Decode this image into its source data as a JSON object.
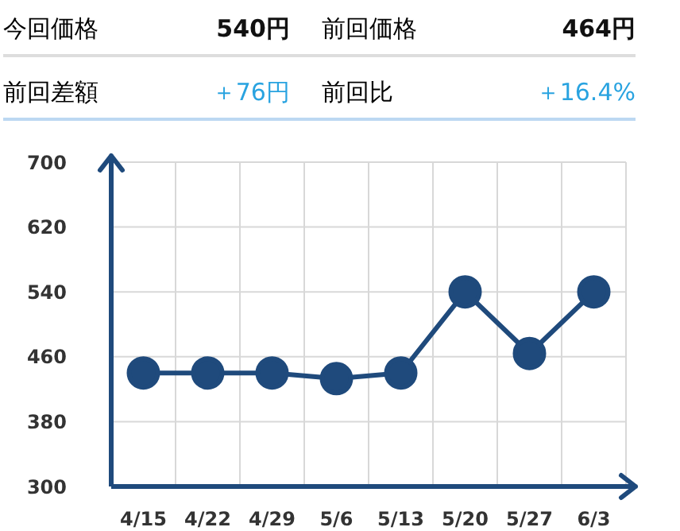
{
  "chart_data": {
    "type": "line",
    "annotations": [
      "今回価格",
      "540円",
      "前回価格",
      "464円",
      "前回差額",
      "＋76円",
      "前回比",
      "＋16.4%"
    ],
    "categories": [
      "4/15",
      "4/22",
      "4/29",
      "5/6",
      "5/13",
      "5/20",
      "5/27",
      "6/3"
    ],
    "series": [
      {
        "color": "#1f4a7c",
        "values": [
          440,
          440,
          440,
          433,
          440,
          540,
          464,
          540
        ]
      }
    ],
    "ylim": [
      300,
      700
    ],
    "yticks": [
      300,
      380,
      460,
      540,
      620,
      700
    ],
    "grid": true,
    "marker": "circle",
    "line_style": "solid"
  }
}
